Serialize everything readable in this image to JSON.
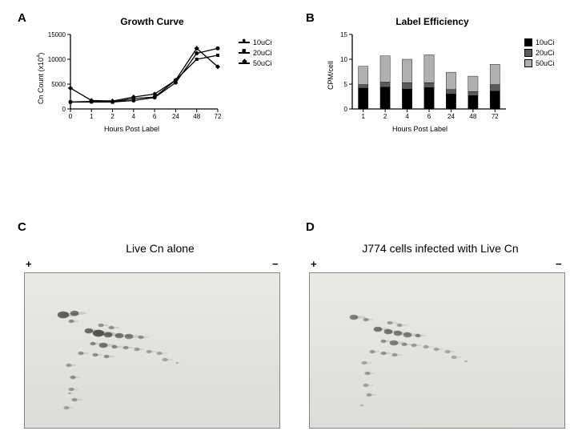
{
  "panels": {
    "A": {
      "label": "A"
    },
    "B": {
      "label": "B"
    },
    "C": {
      "label": "C"
    },
    "D": {
      "label": "D"
    }
  },
  "growth_curve": {
    "type": "line",
    "title": "Growth Curve",
    "x_title": "Hours Post Label",
    "y_title": "Cn Count (x10⁴)",
    "y_title_plain": "Cn Count (x10",
    "y_title_sup": "4",
    "y_title_close": ")",
    "xticks": [
      0,
      1,
      2,
      4,
      6,
      24,
      48,
      72
    ],
    "yticks": [
      0,
      5000,
      10000,
      15000
    ],
    "xlim": [
      0,
      72
    ],
    "ylim": [
      0,
      15000
    ],
    "series": [
      {
        "name": "10uCi",
        "color": "#000000",
        "marker": "circle",
        "values": [
          [
            0,
            1400
          ],
          [
            1,
            1500
          ],
          [
            2,
            1400
          ],
          [
            4,
            1700
          ],
          [
            6,
            2300
          ],
          [
            24,
            5300
          ],
          [
            48,
            11200
          ],
          [
            72,
            12200
          ]
        ]
      },
      {
        "name": "20uCi",
        "color": "#000000",
        "marker": "square",
        "values": [
          [
            0,
            1400
          ],
          [
            1,
            1400
          ],
          [
            2,
            1400
          ],
          [
            4,
            2100
          ],
          [
            6,
            2400
          ],
          [
            24,
            5800
          ],
          [
            48,
            10000
          ],
          [
            72,
            10800
          ]
        ]
      },
      {
        "name": "50uCi",
        "color": "#000000",
        "marker": "diamond",
        "values": [
          [
            0,
            4200
          ],
          [
            1,
            1700
          ],
          [
            2,
            1600
          ],
          [
            4,
            2400
          ],
          [
            6,
            3000
          ],
          [
            24,
            5800
          ],
          [
            48,
            12200
          ],
          [
            72,
            8500
          ]
        ]
      }
    ],
    "line_width": 1.3,
    "marker_size": 4,
    "background_color": "#ffffff",
    "axis_color": "#000000"
  },
  "label_efficiency": {
    "type": "stacked-bar",
    "title": "Label Efficiency",
    "x_title": "Hours Post Label",
    "y_title": "CPM/cell",
    "xticks": [
      1,
      2,
      4,
      6,
      24,
      48,
      72
    ],
    "yticks": [
      0,
      5,
      10,
      15
    ],
    "ylim": [
      0,
      15
    ],
    "series": [
      {
        "name": "10uCi",
        "color": "#000000",
        "values": [
          4.2,
          4.4,
          4.0,
          4.3,
          3.0,
          2.7,
          3.6
        ]
      },
      {
        "name": "20uCi",
        "color": "#5a5a5a",
        "values": [
          0.7,
          1.0,
          1.3,
          1.0,
          0.9,
          0.8,
          1.3
        ]
      },
      {
        "name": "50uCi",
        "color": "#b0b0b0",
        "values": [
          3.7,
          5.3,
          4.7,
          5.6,
          3.5,
          3.1,
          4.1
        ]
      }
    ],
    "bar_width_ratio": 0.45,
    "background_color": "#ffffff",
    "axis_color": "#000000"
  },
  "gel_C": {
    "title": "Live Cn alone",
    "plus": "+",
    "minus": "−",
    "background_color": "#e2e2de",
    "spots": [
      [
        48,
        52,
        4,
        0.65
      ],
      [
        62,
        50,
        3,
        0.55
      ],
      [
        58,
        60,
        2,
        0.4
      ],
      [
        80,
        72,
        3,
        0.6
      ],
      [
        92,
        75,
        4,
        0.7
      ],
      [
        104,
        77,
        3,
        0.6
      ],
      [
        118,
        78,
        3,
        0.55
      ],
      [
        130,
        79,
        3,
        0.5
      ],
      [
        145,
        80,
        2,
        0.4
      ],
      [
        85,
        88,
        2,
        0.45
      ],
      [
        98,
        90,
        3,
        0.55
      ],
      [
        112,
        92,
        2,
        0.45
      ],
      [
        126,
        93,
        2,
        0.4
      ],
      [
        70,
        100,
        2,
        0.4
      ],
      [
        88,
        102,
        2,
        0.4
      ],
      [
        102,
        104,
        2,
        0.4
      ],
      [
        55,
        115,
        2,
        0.35
      ],
      [
        60,
        130,
        2,
        0.4
      ],
      [
        58,
        145,
        2,
        0.35
      ],
      [
        62,
        158,
        2,
        0.35
      ],
      [
        52,
        168,
        2,
        0.3
      ],
      [
        56,
        150,
        1,
        0.3
      ],
      [
        140,
        95,
        2,
        0.35
      ],
      [
        155,
        98,
        2,
        0.3
      ],
      [
        168,
        100,
        2,
        0.3
      ],
      [
        175,
        108,
        2,
        0.3
      ],
      [
        190,
        112,
        1,
        0.25
      ],
      [
        95,
        65,
        2,
        0.4
      ],
      [
        108,
        68,
        2,
        0.4
      ]
    ]
  },
  "gel_D": {
    "title": "J774 cells infected with Live Cn",
    "plus": "+",
    "minus": "−",
    "background_color": "#e4e4e0",
    "spots": [
      [
        55,
        55,
        3,
        0.5
      ],
      [
        70,
        58,
        2,
        0.4
      ],
      [
        85,
        70,
        3,
        0.55
      ],
      [
        98,
        73,
        3,
        0.55
      ],
      [
        110,
        75,
        3,
        0.5
      ],
      [
        122,
        77,
        3,
        0.5
      ],
      [
        135,
        78,
        2,
        0.45
      ],
      [
        92,
        85,
        2,
        0.4
      ],
      [
        105,
        87,
        3,
        0.5
      ],
      [
        118,
        89,
        2,
        0.4
      ],
      [
        130,
        90,
        2,
        0.35
      ],
      [
        78,
        98,
        2,
        0.35
      ],
      [
        92,
        100,
        2,
        0.4
      ],
      [
        106,
        102,
        2,
        0.35
      ],
      [
        68,
        112,
        2,
        0.3
      ],
      [
        72,
        125,
        2,
        0.35
      ],
      [
        70,
        140,
        2,
        0.3
      ],
      [
        74,
        152,
        2,
        0.3
      ],
      [
        145,
        92,
        2,
        0.3
      ],
      [
        158,
        95,
        2,
        0.3
      ],
      [
        172,
        98,
        2,
        0.28
      ],
      [
        180,
        105,
        2,
        0.28
      ],
      [
        195,
        110,
        1,
        0.25
      ],
      [
        100,
        62,
        2,
        0.35
      ],
      [
        112,
        65,
        2,
        0.35
      ],
      [
        65,
        165,
        1,
        0.25
      ]
    ]
  }
}
